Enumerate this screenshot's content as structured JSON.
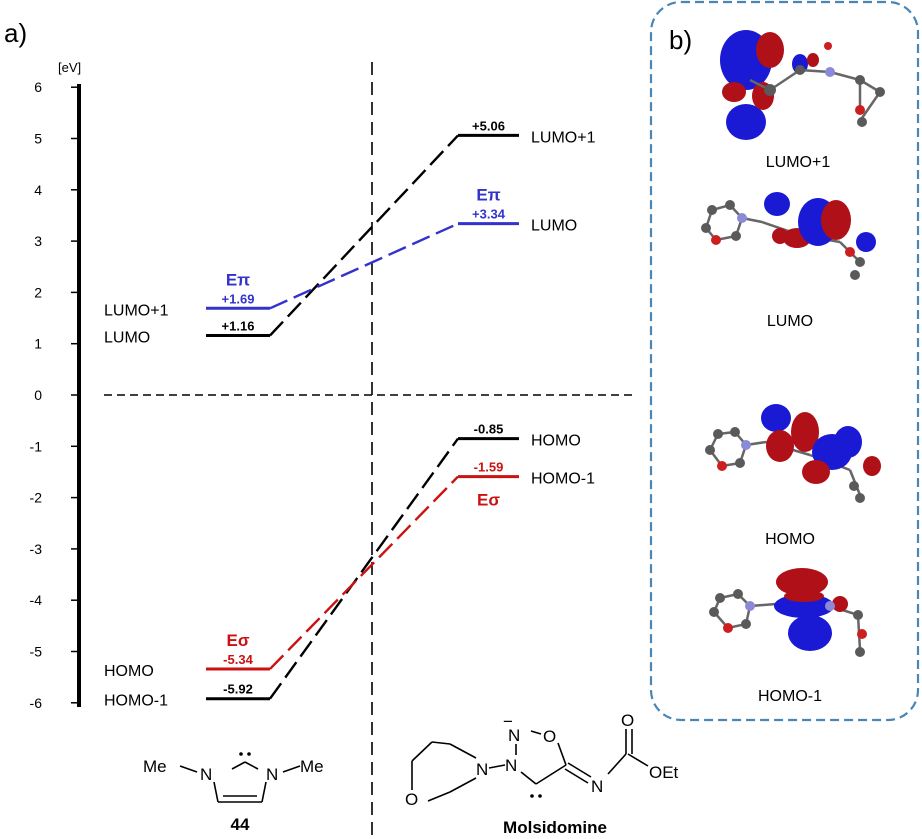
{
  "panel_a": {
    "label": "a)",
    "unit": "[eV]",
    "ticks": [
      "6",
      "5",
      "4",
      "3",
      "2",
      "1",
      "0",
      "-1",
      "-2",
      "-3",
      "-4",
      "-5",
      "-6"
    ],
    "tick_values": [
      6,
      5,
      4,
      3,
      2,
      1,
      0,
      -1,
      -2,
      -3,
      -4,
      -5,
      -6
    ]
  },
  "levels": {
    "left": [
      {
        "id": "left-lumo1",
        "name": "LUMO+1",
        "energy": 1.69,
        "energy_label": "+1.69",
        "color": "#3333cc",
        "tag": "Eπ",
        "tag_pos": "above"
      },
      {
        "id": "left-lumo",
        "name": "LUMO",
        "energy": 1.16,
        "energy_label": "+1.16",
        "color": "#000000",
        "tag": "",
        "tag_pos": ""
      },
      {
        "id": "left-homo",
        "name": "HOMO",
        "energy": -5.34,
        "energy_label": "-5.34",
        "color": "#cc1111",
        "tag": "Eσ",
        "tag_pos": "above"
      },
      {
        "id": "left-homo1",
        "name": "HOMO-1",
        "energy": -5.92,
        "energy_label": "-5.92",
        "color": "#000000",
        "tag": "",
        "tag_pos": ""
      }
    ],
    "right": [
      {
        "id": "right-lumo1",
        "name": "LUMO+1",
        "energy": 5.06,
        "energy_label": "+5.06",
        "color": "#000000",
        "tag": "",
        "tag_pos": ""
      },
      {
        "id": "right-lumo",
        "name": "LUMO",
        "energy": 3.34,
        "energy_label": "+3.34",
        "color": "#3333cc",
        "tag": "Eπ",
        "tag_pos": "above"
      },
      {
        "id": "right-homo",
        "name": "HOMO",
        "energy": -0.85,
        "energy_label": "-0.85",
        "color": "#000000",
        "tag": "",
        "tag_pos": ""
      },
      {
        "id": "right-homo1",
        "name": "HOMO-1",
        "energy": -1.59,
        "energy_label": "-1.59",
        "color": "#cc1111",
        "tag": "Eσ",
        "tag_pos": "below"
      }
    ],
    "connections": [
      {
        "from": 1.16,
        "to": 5.06,
        "color": "#000000"
      },
      {
        "from": 1.69,
        "to": 3.34,
        "color": "#3333cc"
      },
      {
        "from": -5.92,
        "to": -0.85,
        "color": "#000000"
      },
      {
        "from": -5.34,
        "to": -1.59,
        "color": "#cc1111"
      }
    ]
  },
  "structures": {
    "compound_44": {
      "label": "44",
      "me_left": "Me",
      "me_right": "Me",
      "n_left": "N",
      "n_right": "N"
    },
    "molsidomine": {
      "label": "Molsidomine",
      "o_ring": "O",
      "n1": "N",
      "n2": "N",
      "n3": "N",
      "o2": "O",
      "n_imine": "N",
      "o_carbonyl": "O",
      "oet": "OEt",
      "charge": "−"
    }
  },
  "panel_b": {
    "label": "b)",
    "orbitals": [
      "LUMO+1",
      "LUMO",
      "HOMO",
      "HOMO-1"
    ],
    "colors": {
      "positive": "#1a1ad4",
      "negative": "#b01018",
      "carbon": "#5a5a5a",
      "nitrogen": "#8a8ad8",
      "oxygen": "#cc2020",
      "border": "#4a86b5"
    }
  }
}
